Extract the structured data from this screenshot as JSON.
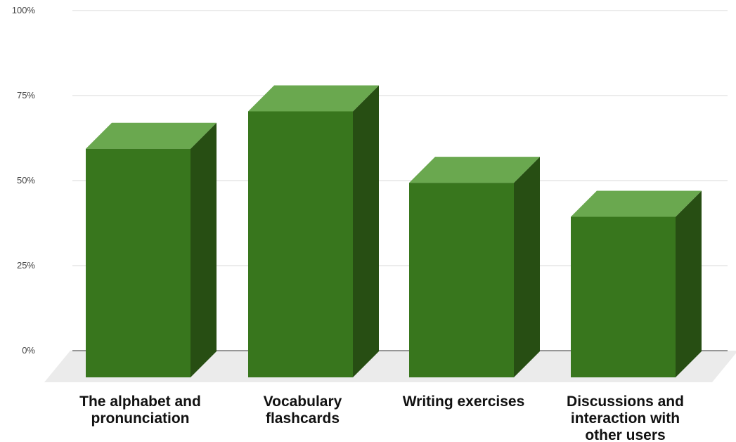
{
  "chart_data": {
    "type": "bar",
    "style": "3d",
    "categories": [
      [
        "The alphabet and",
        "pronunciation"
      ],
      [
        "Vocabulary",
        "flashcards"
      ],
      [
        "Writing exercises"
      ],
      [
        "Discussions and",
        "interaction with",
        "other users"
      ]
    ],
    "values": [
      67,
      78,
      57,
      47
    ],
    "ylim": [
      0,
      100
    ],
    "yticks": [
      0,
      25,
      50,
      75,
      100
    ],
    "ytick_labels": [
      "0%",
      "25%",
      "50%",
      "75%",
      "100%"
    ],
    "title": "",
    "xlabel": "",
    "ylabel": "",
    "grid": true,
    "legend": "none",
    "colors": {
      "bar_front": "#38761d",
      "bar_side": "#274e13",
      "bar_top": "#6aa84f",
      "floor": "#ebebeb",
      "grid": "#d9d9d9",
      "baseline": "#333333"
    }
  }
}
